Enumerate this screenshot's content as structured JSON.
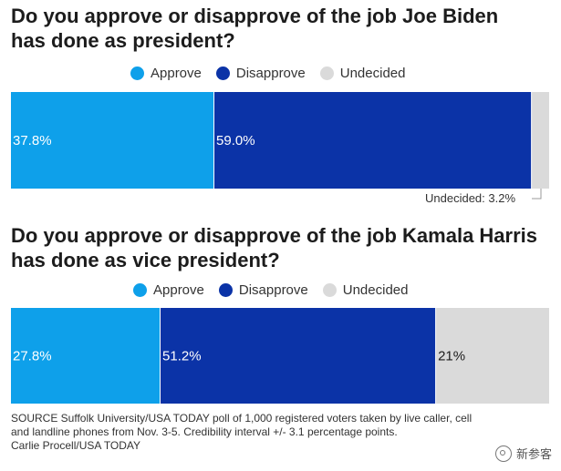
{
  "colors": {
    "approve": "#0ea0ea",
    "disapprove": "#0b33a7",
    "undecided": "#dadada"
  },
  "legend": {
    "approve": "Approve",
    "disapprove": "Disapprove",
    "undecided": "Undecided"
  },
  "chart_data": [
    {
      "type": "bar",
      "title": "Do you approve or disapprove of the job Joe Biden has done as president?",
      "categories": [
        "Approve",
        "Disapprove",
        "Undecided"
      ],
      "values": [
        37.8,
        59.0,
        3.2
      ],
      "labels": [
        "37.8%",
        "59.0%",
        ""
      ],
      "callout": "Undecided: 3.2%",
      "xlim": [
        0,
        100
      ],
      "legend_position": "top-center",
      "grid": false
    },
    {
      "type": "bar",
      "title": "Do you approve or disapprove of the job Kamala Harris has done as vice president?",
      "categories": [
        "Approve",
        "Disapprove",
        "Undecided"
      ],
      "values": [
        27.8,
        51.2,
        21
      ],
      "labels": [
        "27.8%",
        "51.2%",
        "21%"
      ],
      "callout": "",
      "xlim": [
        0,
        100
      ],
      "legend_position": "top-center",
      "grid": false
    }
  ],
  "source": {
    "line1": "SOURCE Suffolk University/USA TODAY poll of 1,000 registered voters taken by live caller, cell",
    "line2": "and landline phones from Nov. 3-5. Credibility interval +/- 3.1 percentage points.",
    "credit": "Carlie Procell/USA TODAY"
  },
  "watermark": {
    "icon": "wechat-icon",
    "text": "新参客"
  }
}
